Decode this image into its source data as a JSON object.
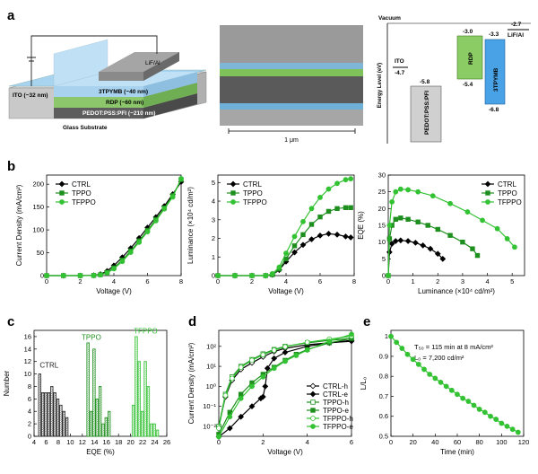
{
  "panels": {
    "a": "a",
    "b": "b",
    "c": "c",
    "d": "d",
    "e": "e"
  },
  "device": {
    "layers": [
      "LiF/Al",
      "3TPYMB (~40 nm)",
      "RDP (~60 nm)",
      "PEDOT:PSS:PFI (~210 nm)",
      "Glass Substrate"
    ],
    "ito": "ITO (~32 nm)"
  },
  "sem": {
    "scale": "1 μm"
  },
  "energy": {
    "ylabel": "Energy Level (eV)",
    "vacuum": "Vacuum",
    "ito_name": "ITO",
    "ito_val": "-4.7",
    "pedot_name": "PEDOT:PSS:PFI",
    "pedot_val": "-5.8",
    "rdp_name": "RDP",
    "rdp_top": "-3.0",
    "rdp_bot": "-5.4",
    "tpymb_name": "3TPYMB",
    "tpymb_top": "-3.3",
    "tpymb_bot": "-6.8",
    "lif_name": "LiF/Al",
    "lif_val": "-2.7"
  },
  "colors": {
    "ctrl": "#000000",
    "tppo": "#1e8f1e",
    "tfppo": "#33c233"
  },
  "chart_data": [
    {
      "id": "b1",
      "type": "line",
      "xlabel": "Voltage (V)",
      "ylabel": "Current Density (mA/cm²)",
      "xlim": [
        0,
        8
      ],
      "ylim": [
        0,
        220
      ],
      "xticks": [
        0,
        2,
        4,
        6,
        8
      ],
      "yticks": [
        0,
        50,
        100,
        150,
        200
      ],
      "legend": "top-left",
      "series": [
        {
          "name": "CTRL",
          "marker": "diamond",
          "x": [
            0,
            1,
            2,
            2.8,
            3.2,
            3.6,
            4,
            4.5,
            5,
            5.5,
            6,
            6.5,
            7,
            7.5,
            8
          ],
          "y": [
            0,
            0,
            0,
            0.5,
            3,
            10,
            22,
            40,
            60,
            82,
            105,
            128,
            152,
            178,
            205
          ]
        },
        {
          "name": "TPPO",
          "marker": "square",
          "x": [
            0,
            1,
            2,
            2.8,
            3.2,
            3.6,
            4,
            4.5,
            5,
            5.5,
            6,
            6.5,
            7,
            7.5,
            8
          ],
          "y": [
            0,
            0,
            0,
            0.3,
            2,
            7,
            17,
            34,
            54,
            76,
            99,
            123,
            148,
            175,
            210
          ]
        },
        {
          "name": "TFPPO",
          "marker": "circle",
          "x": [
            0,
            1,
            2,
            2.8,
            3.2,
            3.6,
            4,
            4.5,
            5,
            5.5,
            6,
            6.5,
            7,
            7.5,
            8
          ],
          "y": [
            0,
            0,
            0,
            0.2,
            1.5,
            6,
            15,
            31,
            51,
            73,
            96,
            120,
            146,
            172,
            212
          ]
        }
      ]
    },
    {
      "id": "b2",
      "type": "line",
      "xlabel": "Voltage (V)",
      "ylabel": "Luminance (×10⁴ cd/m²)",
      "xlim": [
        0,
        8
      ],
      "ylim": [
        0,
        5.4
      ],
      "xticks": [
        0,
        2,
        4,
        6,
        8
      ],
      "yticks": [
        0,
        1,
        2,
        3,
        4,
        5
      ],
      "legend": "top-left",
      "series": [
        {
          "name": "CTRL",
          "marker": "diamond",
          "x": [
            0,
            1,
            2,
            2.8,
            3.2,
            3.6,
            4,
            4.5,
            5,
            5.5,
            6,
            6.5,
            7,
            7.5,
            7.8
          ],
          "y": [
            0,
            0,
            0,
            0,
            0.05,
            0.3,
            0.75,
            1.25,
            1.65,
            1.95,
            2.15,
            2.25,
            2.2,
            2.1,
            2.05
          ]
        },
        {
          "name": "TPPO",
          "marker": "square",
          "x": [
            0,
            1,
            2,
            2.8,
            3.2,
            3.6,
            4,
            4.5,
            5,
            5.5,
            6,
            6.5,
            7,
            7.5,
            7.8
          ],
          "y": [
            0,
            0,
            0,
            0,
            0.05,
            0.35,
            0.9,
            1.6,
            2.2,
            2.75,
            3.15,
            3.45,
            3.6,
            3.65,
            3.65
          ]
        },
        {
          "name": "TFPPO",
          "marker": "circle",
          "x": [
            0,
            1,
            2,
            2.8,
            3.2,
            3.6,
            4,
            4.5,
            5,
            5.5,
            6,
            6.5,
            7,
            7.5,
            7.8
          ],
          "y": [
            0,
            0,
            0,
            0,
            0.1,
            0.45,
            1.2,
            2.1,
            2.9,
            3.6,
            4.2,
            4.65,
            4.95,
            5.15,
            5.2
          ]
        }
      ]
    },
    {
      "id": "b3",
      "type": "line",
      "xlabel": "Luminance (×10⁴ cd/m²)",
      "ylabel": "EQE (%)",
      "xlim": [
        0,
        5.5
      ],
      "ylim": [
        0,
        30
      ],
      "xticks": [
        0,
        1,
        2,
        3,
        4,
        5
      ],
      "yticks": [
        0,
        5,
        10,
        15,
        20,
        25,
        30
      ],
      "legend": "top-right",
      "series": [
        {
          "name": "CTRL",
          "marker": "diamond",
          "x": [
            0,
            0.05,
            0.15,
            0.3,
            0.5,
            0.8,
            1.1,
            1.4,
            1.7,
            2.0,
            2.2
          ],
          "y": [
            0,
            7,
            9.5,
            10.3,
            10.5,
            10.3,
            9.8,
            9,
            8,
            6.5,
            5
          ]
        },
        {
          "name": "TPPO",
          "marker": "square",
          "x": [
            0,
            0.05,
            0.15,
            0.3,
            0.5,
            0.8,
            1.2,
            1.6,
            2.0,
            2.5,
            3.0,
            3.4,
            3.6
          ],
          "y": [
            0,
            11,
            15,
            16.8,
            17.2,
            16.8,
            16,
            15,
            13.8,
            12,
            10,
            8,
            6
          ]
        },
        {
          "name": "TFPPO",
          "marker": "circle",
          "x": [
            0,
            0.05,
            0.15,
            0.3,
            0.5,
            0.8,
            1.2,
            1.8,
            2.5,
            3.2,
            3.8,
            4.4,
            4.8,
            5.1
          ],
          "y": [
            0,
            15,
            22,
            25,
            25.8,
            25.6,
            25,
            23.8,
            21.5,
            19,
            16.5,
            14,
            11,
            8.5
          ]
        }
      ]
    },
    {
      "id": "c",
      "type": "bar",
      "xlabel": "EQE (%)",
      "ylabel": "Number",
      "xlim": [
        4,
        26
      ],
      "ylim": [
        0,
        17
      ],
      "xticks": [
        4,
        6,
        8,
        10,
        12,
        14,
        16,
        18,
        20,
        22,
        24,
        26
      ],
      "yticks": [
        0,
        2,
        4,
        6,
        8,
        10,
        12,
        14,
        16
      ],
      "series": [
        {
          "name": "CTRL",
          "label_x": 6.5,
          "label_y": 11,
          "x": [
            5,
            5.5,
            6,
            6.5,
            7,
            7.5,
            8,
            8.5,
            9,
            9.5
          ],
          "values": [
            10,
            7,
            7,
            7,
            8,
            7,
            6,
            5,
            4,
            3
          ]
        },
        {
          "name": "TPPO",
          "label_x": 13.5,
          "label_y": 15.5,
          "x": [
            13,
            13.5,
            14,
            14.5,
            15,
            15.5,
            16,
            16.5
          ],
          "values": [
            15,
            4,
            14,
            6,
            8,
            2,
            3,
            4
          ]
        },
        {
          "name": "TFPPO",
          "label_x": 22.5,
          "label_y": 16.5,
          "x": [
            20.5,
            21,
            21.5,
            22,
            22.5,
            23,
            23.5,
            24,
            24.5
          ],
          "values": [
            5,
            16,
            12,
            4,
            12,
            8,
            2,
            2,
            1
          ]
        }
      ]
    },
    {
      "id": "d",
      "type": "line",
      "xlabel": "Voltage (V)",
      "ylabel": "Current Density (mA/cm²)",
      "xlim": [
        0,
        6
      ],
      "log_y": true,
      "ylim_exp": [
        -2.5,
        2.8
      ],
      "xticks": [
        0,
        2,
        4,
        6
      ],
      "yticks_exp": [
        -2,
        -1,
        0,
        1,
        2
      ],
      "legend": "bottom-right",
      "series": [
        {
          "name": "CTRL-h",
          "marker": "diamond-open",
          "x": [
            0,
            0.3,
            0.6,
            1,
            1.5,
            2,
            2.5,
            3,
            4,
            5,
            6
          ],
          "y": [
            0.01,
            0.3,
            2,
            7,
            15,
            30,
            55,
            80,
            120,
            150,
            180
          ]
        },
        {
          "name": "CTRL-e",
          "marker": "diamond",
          "x": [
            0,
            0.5,
            1,
            1.5,
            1.9,
            2.0,
            2.1,
            2.2,
            2.5,
            3,
            4,
            5,
            6
          ],
          "y": [
            0.003,
            0.008,
            0.03,
            0.1,
            0.25,
            0.3,
            1,
            8,
            25,
            50,
            100,
            150,
            200
          ]
        },
        {
          "name": "TPPO-h",
          "marker": "square-open",
          "x": [
            0,
            0.3,
            0.6,
            1,
            1.5,
            2,
            2.5,
            3,
            4,
            5,
            6
          ],
          "y": [
            0.01,
            0.4,
            3,
            10,
            22,
            42,
            70,
            100,
            150,
            200,
            250
          ]
        },
        {
          "name": "TPPO-e",
          "marker": "square",
          "x": [
            0,
            0.5,
            1,
            1.5,
            2,
            2.5,
            3,
            3.5,
            4,
            5,
            6
          ],
          "y": [
            0.004,
            0.05,
            0.4,
            1.5,
            4,
            9,
            20,
            40,
            70,
            150,
            250
          ]
        },
        {
          "name": "TFPPO-h",
          "marker": "circle-open",
          "x": [
            0,
            0.3,
            0.6,
            1,
            1.5,
            2,
            2.5,
            3,
            4,
            5,
            6
          ],
          "y": [
            0.008,
            0.35,
            2.5,
            9,
            20,
            38,
            65,
            95,
            160,
            230,
            320
          ]
        },
        {
          "name": "TFPPO-e",
          "marker": "circle",
          "x": [
            0,
            0.5,
            1,
            1.5,
            2,
            2.5,
            3,
            3.5,
            4,
            5,
            6
          ],
          "y": [
            0.003,
            0.03,
            0.25,
            1,
            3,
            8,
            18,
            35,
            65,
            180,
            400
          ]
        }
      ]
    },
    {
      "id": "e",
      "type": "line",
      "xlabel": "Time (min)",
      "ylabel": "L/L₀",
      "xlim": [
        0,
        120
      ],
      "ylim": [
        0.5,
        1.03
      ],
      "xticks": [
        0,
        20,
        40,
        60,
        80,
        100,
        120
      ],
      "yticks": [
        0.5,
        0.6,
        0.7,
        0.8,
        0.9,
        1.0
      ],
      "series": [
        {
          "name": "TFPPO",
          "marker": "circle",
          "x": [
            0,
            5,
            10,
            15,
            20,
            25,
            30,
            35,
            40,
            45,
            50,
            55,
            60,
            65,
            70,
            75,
            80,
            85,
            90,
            95,
            100,
            105,
            110,
            115
          ],
          "y": [
            1.0,
            0.97,
            0.94,
            0.91,
            0.885,
            0.86,
            0.835,
            0.81,
            0.79,
            0.77,
            0.75,
            0.73,
            0.71,
            0.69,
            0.675,
            0.655,
            0.635,
            0.62,
            0.6,
            0.585,
            0.565,
            0.55,
            0.535,
            0.52
          ]
        }
      ]
    }
  ],
  "annot_e": {
    "line1": "T₅₀ = 115 min at 8 mA/cm²",
    "line2": "L₀ = 7,200 cd/m²"
  }
}
